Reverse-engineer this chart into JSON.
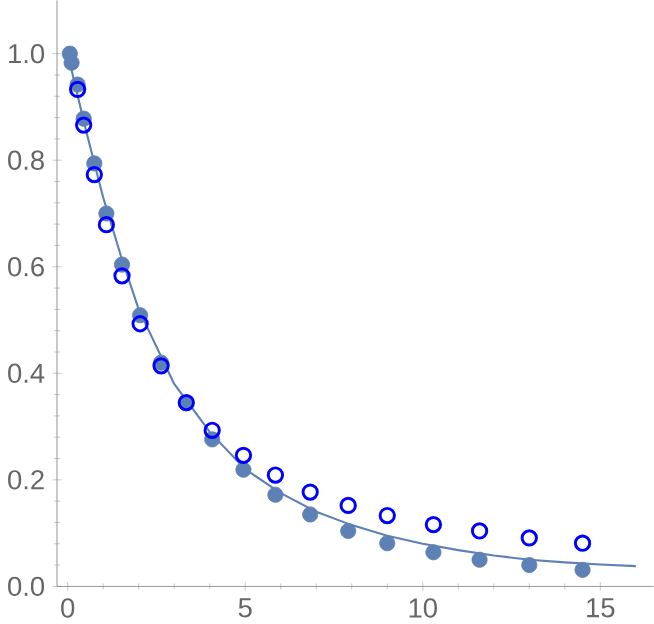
{
  "chart_data": {
    "type": "scatter",
    "xlim": [
      -0.3,
      16.5
    ],
    "ylim": [
      0,
      1.1
    ],
    "xticks": [
      0,
      5,
      10,
      15
    ],
    "yticks": [
      {
        "value": 0,
        "label": "0.0"
      },
      {
        "value": 0.2,
        "label": "0.2"
      },
      {
        "value": 0.4,
        "label": "0.4"
      },
      {
        "value": 0.6,
        "label": "0.6"
      },
      {
        "value": 0.8,
        "label": "0.8"
      },
      {
        "value": 1,
        "label": "1.0"
      }
    ],
    "grid": false,
    "series": [
      {
        "type": "line",
        "color": "#5e81b5",
        "x": [
          0,
          0.5,
          1,
          1.5,
          2,
          3,
          4,
          5,
          6,
          7,
          8,
          9,
          10,
          11,
          12,
          13,
          14,
          15,
          16
        ],
        "values": [
          1.0,
          0.86,
          0.73,
          0.62,
          0.52,
          0.38,
          0.29,
          0.22,
          0.175,
          0.14,
          0.115,
          0.095,
          0.08,
          0.068,
          0.058,
          0.05,
          0.045,
          0.041,
          0.038
        ]
      },
      {
        "marker": "circle",
        "color": "#5e81b5",
        "x": [
          0.06,
          0.11,
          0.28,
          0.45,
          0.75,
          1.09,
          1.53,
          2.04,
          2.63,
          3.34,
          4.07,
          4.95,
          5.85,
          6.83,
          7.9,
          9.0,
          10.3,
          11.6,
          13.0,
          14.5
        ],
        "values": [
          1.0,
          0.983,
          0.942,
          0.878,
          0.794,
          0.7,
          0.604,
          0.509,
          0.42,
          0.344,
          0.276,
          0.219,
          0.172,
          0.135,
          0.104,
          0.081,
          0.064,
          0.05,
          0.04,
          0.031
        ]
      },
      {
        "marker": "open circle",
        "color": "#0000ff",
        "x": [
          0.28,
          0.45,
          0.75,
          1.09,
          1.53,
          2.04,
          2.63,
          3.34,
          4.07,
          4.95,
          5.85,
          6.83,
          7.9,
          9.0,
          10.3,
          11.6,
          13.0,
          14.5
        ],
        "values": [
          0.933,
          0.866,
          0.773,
          0.679,
          0.583,
          0.493,
          0.414,
          0.345,
          0.293,
          0.246,
          0.209,
          0.177,
          0.152,
          0.133,
          0.116,
          0.104,
          0.091,
          0.081
        ]
      }
    ]
  }
}
